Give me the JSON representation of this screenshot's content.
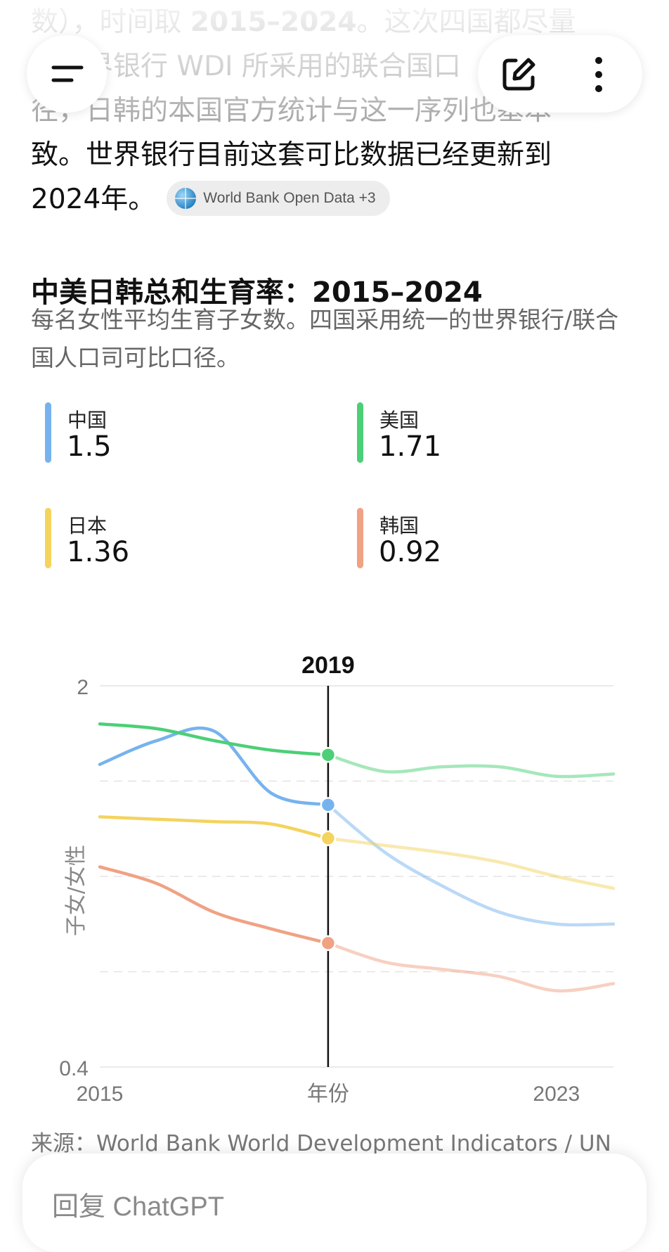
{
  "article": {
    "lines": [
      {
        "a": "数），时间取 ",
        "b": "2015–2024",
        "c": "。这次四国都尽量"
      },
      {
        "text": "用世界银行 WDI 所采用的联合国口"
      },
      {
        "text": "径，日韩的本国官方统计与这一序列也基本一"
      },
      {
        "text": "致。世界银行目前这套可比数据已经更新到"
      },
      {
        "text": "2024年。"
      }
    ],
    "source_chip": "World Bank Open Data +3"
  },
  "chart_section": {
    "title": "中美日韩总和生育率：2015–2024",
    "subtitle": "每名女性平均生育子女数。四国采用统一的世界银行/联合国人口司可比口径。",
    "legend": [
      {
        "name": "中国",
        "value": "1.5",
        "color": "#76b3ee"
      },
      {
        "name": "美国",
        "value": "1.71",
        "color": "#4ccf77"
      },
      {
        "name": "日本",
        "value": "1.36",
        "color": "#f4d35e"
      },
      {
        "name": "韩国",
        "value": "0.92",
        "color": "#f0a284"
      }
    ],
    "source": "来源：World Bank World Development Indicators / UN"
  },
  "chart_data": {
    "type": "line",
    "x": [
      2015,
      2016,
      2017,
      2018,
      2019,
      2020,
      2021,
      2022,
      2023,
      2024
    ],
    "x_tick_labels": [
      "2015",
      "2023"
    ],
    "xlabel": "年份",
    "ylabel": "子女/女性",
    "ylim": [
      0.4,
      2
    ],
    "y_tick_labels": [
      "2",
      "0.4"
    ],
    "highlight_year": "2019",
    "grid": true,
    "series": [
      {
        "name": "中国",
        "color": "#76b3ee",
        "values": [
          1.67,
          1.77,
          1.81,
          1.55,
          1.5,
          1.3,
          1.16,
          1.05,
          1.0,
          1.0
        ]
      },
      {
        "name": "美国",
        "color": "#4ccf77",
        "values": [
          1.84,
          1.82,
          1.77,
          1.73,
          1.71,
          1.64,
          1.66,
          1.66,
          1.62,
          1.63
        ]
      },
      {
        "name": "日本",
        "color": "#f4d35e",
        "values": [
          1.45,
          1.44,
          1.43,
          1.42,
          1.36,
          1.33,
          1.3,
          1.26,
          1.2,
          1.15
        ]
      },
      {
        "name": "韩国",
        "color": "#f0a284",
        "values": [
          1.24,
          1.17,
          1.05,
          0.98,
          0.92,
          0.84,
          0.81,
          0.78,
          0.72,
          0.75
        ]
      }
    ]
  },
  "composer": {
    "placeholder": "回复 ChatGPT"
  }
}
